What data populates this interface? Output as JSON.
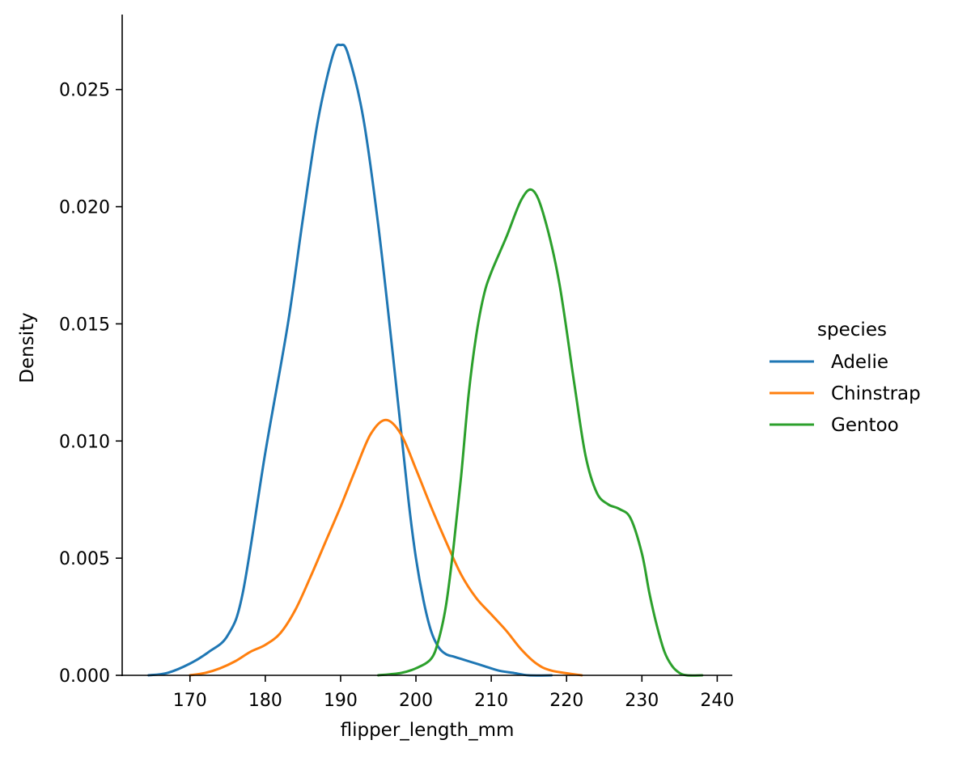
{
  "chart_data": {
    "type": "line",
    "title": "",
    "xlabel": "flipper_length_mm",
    "ylabel": "Density",
    "xlim": [
      161,
      242
    ],
    "ylim": [
      0,
      0.0282
    ],
    "xticks": [
      170,
      180,
      190,
      200,
      210,
      220,
      230,
      240
    ],
    "xtick_labels": [
      "170",
      "180",
      "190",
      "200",
      "210",
      "220",
      "230",
      "240"
    ],
    "yticks": [
      0,
      0.005,
      0.01,
      0.015,
      0.02,
      0.025
    ],
    "ytick_labels": [
      "0.000",
      "0.005",
      "0.010",
      "0.015",
      "0.020",
      "0.025"
    ],
    "grid": false,
    "legend": {
      "title": "species",
      "position": "right"
    },
    "series": [
      {
        "name": "Adelie",
        "color": "#1f77b4",
        "x": [
          164.5,
          167,
          170,
          172.5,
          175,
          177,
          180,
          183,
          185,
          187,
          189,
          190,
          191,
          193,
          195,
          197,
          199,
          200,
          201,
          202,
          203,
          204,
          205,
          206,
          207,
          209,
          211,
          213,
          215,
          218
        ],
        "y": [
          0.0,
          0.0001,
          0.0005,
          0.001,
          0.0017,
          0.0035,
          0.0095,
          0.015,
          0.0195,
          0.0237,
          0.0265,
          0.0269,
          0.0265,
          0.0238,
          0.0192,
          0.0135,
          0.0075,
          0.005,
          0.0032,
          0.0019,
          0.0012,
          0.0009,
          0.0008,
          0.0007,
          0.0006,
          0.0004,
          0.0002,
          0.0001,
          0.0,
          0.0
        ]
      },
      {
        "name": "Chinstrap",
        "color": "#ff7f0e",
        "x": [
          170,
          172,
          174,
          176,
          178,
          180,
          182,
          184,
          186,
          188,
          190,
          192,
          194,
          196,
          198,
          200,
          202,
          204,
          206,
          208,
          210,
          212,
          214,
          216,
          218,
          222
        ],
        "y": [
          0.0,
          0.0001,
          0.0003,
          0.0006,
          0.001,
          0.0013,
          0.0018,
          0.0028,
          0.0042,
          0.0057,
          0.0072,
          0.0088,
          0.0103,
          0.0109,
          0.0103,
          0.0088,
          0.0072,
          0.0057,
          0.0043,
          0.0033,
          0.0026,
          0.0019,
          0.0011,
          0.0005,
          0.0002,
          0.0
        ]
      },
      {
        "name": "Gentoo",
        "color": "#2ca02c",
        "x": [
          195,
          198,
          200,
          202,
          203,
          204,
          205,
          206,
          207,
          208,
          209,
          210,
          212,
          214,
          215.5,
          217,
          219,
          221,
          222.5,
          224,
          225.5,
          227,
          228.5,
          230,
          231,
          232,
          233,
          234,
          235,
          236,
          238
        ],
        "y": [
          0.0,
          0.0001,
          0.0003,
          0.0007,
          0.0015,
          0.003,
          0.0055,
          0.0085,
          0.012,
          0.0145,
          0.0162,
          0.0172,
          0.0187,
          0.0203,
          0.0207,
          0.0196,
          0.0168,
          0.0125,
          0.0094,
          0.0078,
          0.0073,
          0.0071,
          0.0067,
          0.0052,
          0.0035,
          0.0021,
          0.001,
          0.0004,
          0.0001,
          0.0,
          0.0
        ]
      }
    ]
  }
}
